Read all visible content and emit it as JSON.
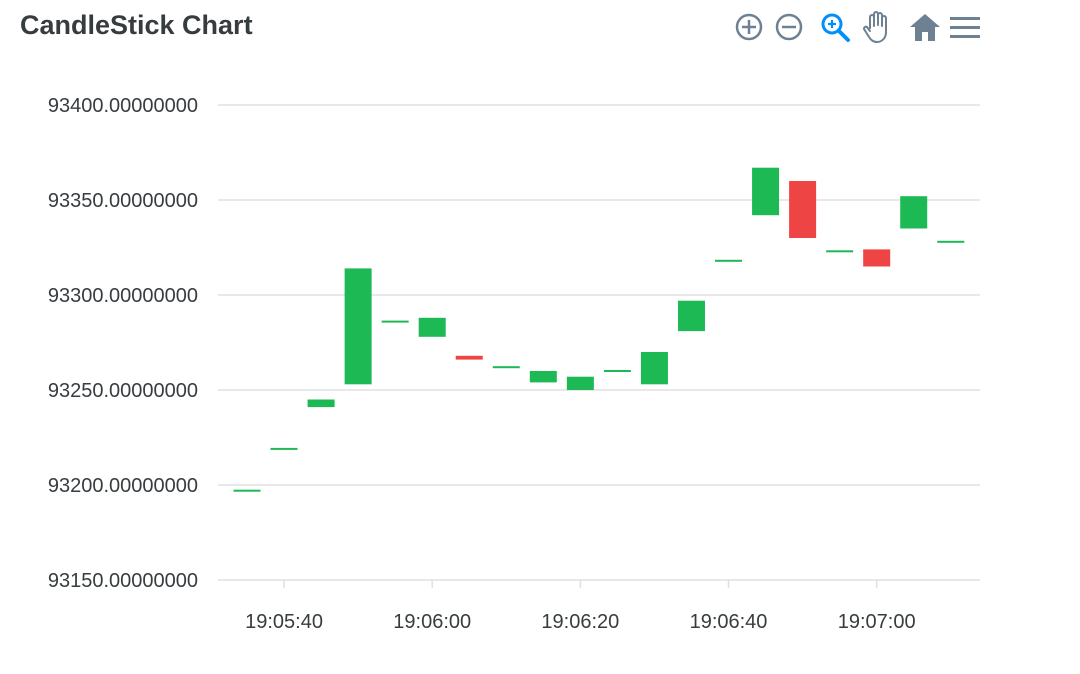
{
  "title": "CandleStick Chart",
  "toolbar": {
    "icons": [
      "zoom-in-icon",
      "zoom-out-icon",
      "selection-zoom-icon",
      "pan-hand-icon",
      "reset-home-icon",
      "menu-icon"
    ],
    "icon_color": "#6e8192",
    "active_color": "#008ffb"
  },
  "colors": {
    "up": "#1db954",
    "down": "#ef4444",
    "grid": "#e0e0e0",
    "text": "#373d3f"
  },
  "chart_data": {
    "type": "candlestick",
    "title": "CandleStick Chart",
    "xlabel": "",
    "ylabel": "",
    "ylim": [
      93150,
      93400
    ],
    "yticks": [
      "93400.00000000",
      "93350.00000000",
      "93300.00000000",
      "93250.00000000",
      "93200.00000000",
      "93150.00000000"
    ],
    "xticks": [
      "19:05:40",
      "19:06:00",
      "19:06:20",
      "19:06:40",
      "19:07:00"
    ],
    "grid": true,
    "candles": [
      {
        "t": "19:05:35",
        "open": 93197,
        "close": 93197
      },
      {
        "t": "19:05:40",
        "open": 93219,
        "close": 93219
      },
      {
        "t": "19:05:45",
        "open": 93241,
        "close": 93245
      },
      {
        "t": "19:05:50",
        "open": 93253,
        "close": 93314
      },
      {
        "t": "19:05:55",
        "open": 93286,
        "close": 93286
      },
      {
        "t": "19:06:00",
        "open": 93278,
        "close": 93288
      },
      {
        "t": "19:06:05",
        "open": 93268,
        "close": 93266
      },
      {
        "t": "19:06:10",
        "open": 93262,
        "close": 93262
      },
      {
        "t": "19:06:15",
        "open": 93254,
        "close": 93260
      },
      {
        "t": "19:06:20",
        "open": 93250,
        "close": 93257
      },
      {
        "t": "19:06:25",
        "open": 93260,
        "close": 93260
      },
      {
        "t": "19:06:30",
        "open": 93253,
        "close": 93270
      },
      {
        "t": "19:06:35",
        "open": 93281,
        "close": 93297
      },
      {
        "t": "19:06:40",
        "open": 93318,
        "close": 93318
      },
      {
        "t": "19:06:45",
        "open": 93342,
        "close": 93367
      },
      {
        "t": "19:06:50",
        "open": 93360,
        "close": 93330
      },
      {
        "t": "19:06:55",
        "open": 93323,
        "close": 93323
      },
      {
        "t": "19:07:00",
        "open": 93324,
        "close": 93315
      },
      {
        "t": "19:07:05",
        "open": 93335,
        "close": 93352
      },
      {
        "t": "19:07:10",
        "open": 93328,
        "close": 93328
      }
    ]
  }
}
